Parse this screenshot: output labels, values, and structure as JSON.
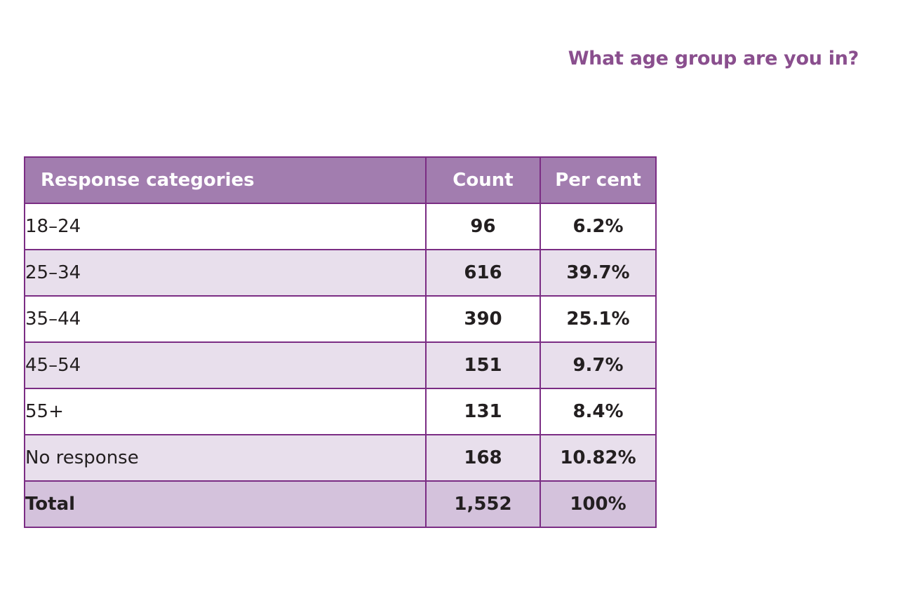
{
  "question": "What age group are you in?",
  "table": {
    "headers": {
      "category": "Response categories",
      "count": "Count",
      "percent": "Per cent"
    },
    "rows": [
      {
        "category": "18–24",
        "count": "96",
        "percent": "6.2%"
      },
      {
        "category": "25–34",
        "count": "616",
        "percent": "39.7%"
      },
      {
        "category": "35–44",
        "count": "390",
        "percent": "25.1%"
      },
      {
        "category": "45–54",
        "count": "151",
        "percent": "9.7%"
      },
      {
        "category": "55+",
        "count": "131",
        "percent": "8.4%"
      },
      {
        "category": "No response",
        "count": "168",
        "percent": "10.82%"
      }
    ],
    "total": {
      "category": "Total",
      "count": "1,552",
      "percent": "100%"
    }
  },
  "colors": {
    "accent": "#8a4f8e",
    "header_bg": "#a27daf",
    "border": "#7b2d84",
    "row_alt_bg": "#e8dfec",
    "total_bg": "#d4c2dc"
  }
}
